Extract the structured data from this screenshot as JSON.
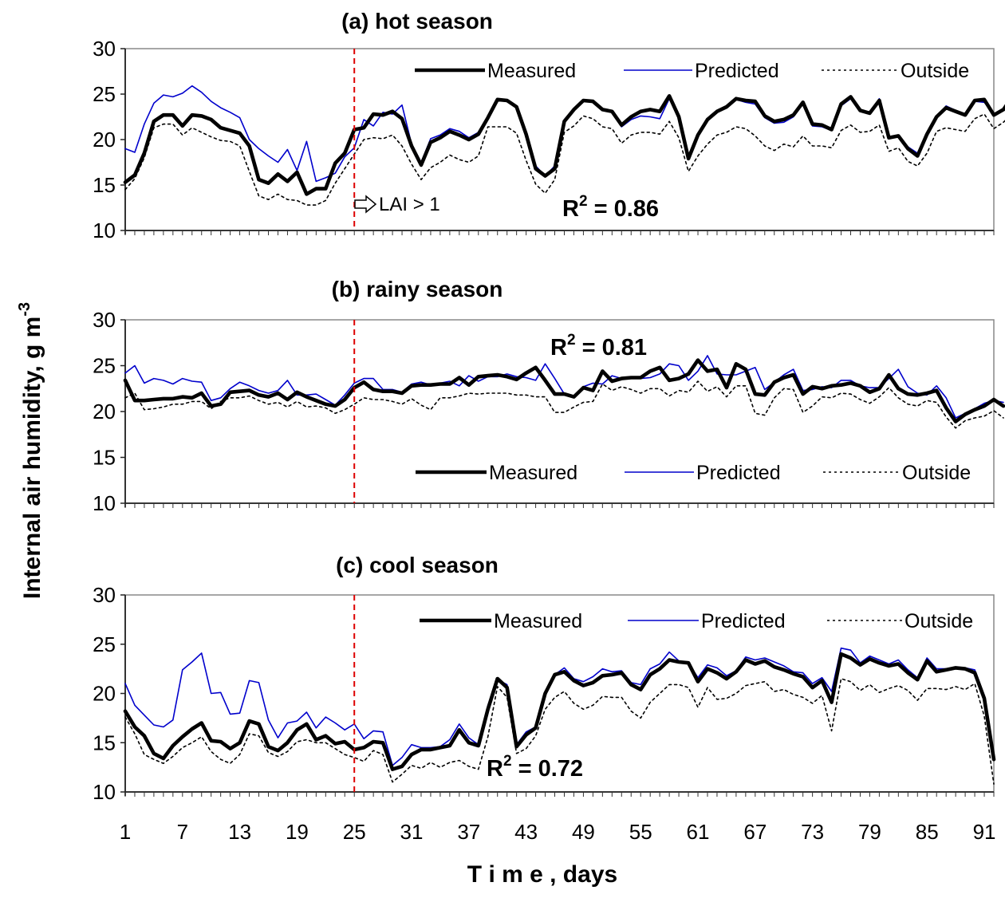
{
  "xlabel": "T i m e ,  days",
  "ylabel": "Internal air humidity, g m",
  "ylabel_sup": "-3",
  "x_tick_labels": [
    "1",
    "7",
    "13",
    "19",
    "25",
    "31",
    "37",
    "43",
    "49",
    "55",
    "61",
    "67",
    "73",
    "79",
    "85",
    "91"
  ],
  "colors": {
    "measured": "#000000",
    "predicted": "#0000cc",
    "outside": "#000000",
    "marker": "#dd0000"
  },
  "legend": {
    "measured": "Measured",
    "predicted": "Predicted",
    "outside": "Outside"
  },
  "chart_data": [
    {
      "type": "line",
      "title": "(a) hot season",
      "xlabel": "T i m e ,  days",
      "ylabel": "Internal air humidity, g m-3",
      "xlim": [
        1,
        92
      ],
      "ylim": [
        10,
        30
      ],
      "y_ticks": [
        10,
        15,
        20,
        25,
        30
      ],
      "r2_label": "R",
      "r2_value": " = 0.86",
      "annotation": "LAI > 1",
      "marker_day": 25,
      "legend_position": "top-right",
      "series": [
        {
          "name": "Measured",
          "values": [
            15.3,
            16.1,
            18.5,
            22,
            22.7,
            22.7,
            21.5,
            22.7,
            22.6,
            22.2,
            21.3,
            21,
            20.7,
            19.3,
            15.6,
            15.2,
            16.2,
            15.4,
            16.4,
            14,
            14.6,
            14.6,
            17.4,
            18.5,
            21.1,
            21.3,
            22.8,
            22.7,
            23.1,
            22.3,
            19.3,
            17.2,
            19.7,
            20.2,
            20.9,
            20.5,
            20,
            20.6,
            22.4,
            24.4,
            24.3,
            23.6,
            20.6,
            16.8,
            16,
            16.8,
            22,
            23.3,
            24.3,
            24.2,
            23.3,
            23.1,
            21.6,
            22.5,
            23.1,
            23.3,
            23.1,
            24.8,
            22.5,
            17.9,
            20.5,
            22.2,
            23.1,
            23.6,
            24.5,
            24.3,
            24.2,
            22.6,
            22,
            22.2,
            22.7,
            24.1,
            21.7,
            21.6,
            21.1,
            23.9,
            24.7,
            23.2,
            22.9,
            24.3,
            20.2,
            20.4,
            19,
            18.2,
            20.6,
            22.5,
            23.5,
            23.1,
            22.7,
            24.3,
            24.4,
            22.7,
            23.3,
            24.8
          ]
        },
        {
          "name": "Predicted",
          "values": [
            19,
            18.6,
            21.7,
            24,
            24.9,
            24.7,
            25.1,
            25.9,
            25.2,
            24.2,
            23.5,
            23,
            22.4,
            20,
            19,
            18.2,
            17.5,
            18.9,
            16.6,
            19.8,
            15.4,
            15.8,
            16.3,
            18.1,
            19.1,
            22.2,
            21.5,
            23,
            22.8,
            23.8,
            19.5,
            17.5,
            20.1,
            20.5,
            21.2,
            20.9,
            20.2,
            20.8,
            22.6,
            24.5,
            24.3,
            23.6,
            20.8,
            17.1,
            16,
            17.1,
            22.2,
            23.4,
            24.3,
            24.1,
            23.4,
            23,
            21.4,
            22.2,
            22.6,
            22.5,
            22.3,
            24.5,
            22.6,
            18.1,
            20.7,
            22.1,
            23,
            23.7,
            24.4,
            24.1,
            23.9,
            22.4,
            21.8,
            21.9,
            22.5,
            23.9,
            21.5,
            21.4,
            21,
            23.7,
            24.5,
            23.1,
            22.8,
            24.5,
            20.3,
            20.3,
            19.2,
            18.5,
            20.6,
            22.5,
            23.7,
            23.2,
            22.8,
            24.2,
            24.1,
            22.8,
            23.4,
            24.8
          ]
        },
        {
          "name": "Outside",
          "values": [
            14.5,
            15.7,
            18,
            21.3,
            21.7,
            21.7,
            20.5,
            21.3,
            20.8,
            20.3,
            19.9,
            19.8,
            19.3,
            16.5,
            13.8,
            13.4,
            14,
            13.4,
            13.3,
            12.8,
            12.8,
            13.3,
            15.2,
            16.8,
            18.4,
            20,
            20.2,
            20.1,
            20.5,
            19.3,
            17.3,
            15.6,
            16.9,
            17.5,
            18.3,
            17.8,
            17.5,
            18.2,
            21.4,
            21.4,
            21.4,
            20.7,
            17.7,
            15.1,
            14.1,
            15.6,
            20.8,
            21.5,
            22.6,
            22.3,
            21.4,
            21.2,
            19.6,
            20.5,
            20.8,
            20.8,
            20.6,
            22,
            20.2,
            16.5,
            18.2,
            19.5,
            20.5,
            20.8,
            21.4,
            21.2,
            20.4,
            19.3,
            18.8,
            19.5,
            19.2,
            20.4,
            19.3,
            19.3,
            19.1,
            21,
            21.6,
            20.8,
            20.9,
            21.6,
            18.7,
            19.1,
            17.6,
            17.1,
            18.5,
            20.9,
            21.3,
            21.1,
            20.9,
            22.3,
            22.8,
            21.2,
            21.9,
            22.9
          ]
        }
      ]
    },
    {
      "type": "line",
      "title": "(b) rainy season",
      "xlabel": "T i m e ,  days",
      "ylabel": "Internal air humidity, g m-3",
      "xlim": [
        1,
        92
      ],
      "ylim": [
        10,
        30
      ],
      "y_ticks": [
        10,
        15,
        20,
        25,
        30
      ],
      "r2_label": "R",
      "r2_value": " = 0.81",
      "marker_day": 25,
      "legend_position": "bottom-right",
      "series": [
        {
          "name": "Measured",
          "values": [
            23.4,
            21.2,
            21.2,
            21.3,
            21.4,
            21.4,
            21.6,
            21.5,
            22,
            20.6,
            20.8,
            22.1,
            22.2,
            22.3,
            21.8,
            21.6,
            22,
            21.3,
            22.1,
            21.6,
            21.2,
            20.8,
            20.6,
            21.3,
            22.6,
            23.2,
            22.4,
            22.2,
            22.2,
            22,
            22.8,
            22.9,
            22.9,
            23,
            23,
            23.7,
            22.9,
            23.8,
            23.9,
            24,
            23.8,
            23.5,
            24.2,
            24.8,
            23.4,
            21.9,
            21.9,
            21.6,
            22.6,
            22.3,
            24.4,
            23.3,
            23.6,
            23.7,
            23.7,
            24.4,
            24.8,
            23.4,
            23.6,
            24.1,
            25.6,
            24.4,
            24.6,
            22.6,
            25.2,
            24.6,
            21.9,
            21.8,
            23.2,
            23.7,
            24,
            21.9,
            22.7,
            22.5,
            22.8,
            22.9,
            23.1,
            22.8,
            22.1,
            22.5,
            24,
            22.5,
            21.9,
            21.8,
            22,
            22.3,
            20.4,
            18.9,
            19.7,
            20.2,
            20.6,
            21.3,
            20.6
          ]
        },
        {
          "name": "Predicted",
          "values": [
            24.2,
            25,
            23.1,
            23.6,
            23.4,
            23,
            23.6,
            23.3,
            23.2,
            21.2,
            21.5,
            22.5,
            23.2,
            22.8,
            22.3,
            22,
            22.3,
            23.4,
            21.8,
            21.8,
            21.9,
            21.3,
            20.7,
            21.8,
            23.1,
            23.6,
            23.6,
            22.4,
            22.4,
            22.1,
            23,
            23.2,
            22.9,
            23.1,
            23.3,
            22.8,
            23.9,
            23.3,
            23.8,
            23.8,
            24.1,
            23.8,
            23.7,
            23.4,
            25.2,
            23.6,
            21.9,
            21.6,
            22.7,
            23.1,
            23,
            23.9,
            23.6,
            23.8,
            23.6,
            23.7,
            24.1,
            25.2,
            25,
            23.4,
            24.4,
            26.1,
            24.1,
            24,
            24,
            24.4,
            24.8,
            22.4,
            23.2,
            24,
            24.6,
            22.3,
            22.4,
            22.7,
            22.6,
            23.4,
            23.4,
            22.8,
            22.6,
            22.6,
            23.6,
            24.6,
            22.7,
            22,
            21.8,
            22.8,
            21.5,
            19.3,
            19.8,
            20.3,
            20.9,
            21.2,
            21
          ]
        },
        {
          "name": "Outside",
          "values": [
            21.5,
            22,
            20.2,
            20.3,
            20.5,
            20.8,
            20.8,
            21.1,
            21.1,
            20.3,
            21.1,
            21.5,
            21.5,
            21.7,
            21.2,
            20.8,
            21,
            20.5,
            21.1,
            20.5,
            20.6,
            20.4,
            19.8,
            20.2,
            20.8,
            21.5,
            21.3,
            21.3,
            21.1,
            20.8,
            21.4,
            20.7,
            20.2,
            21.5,
            21.5,
            21.7,
            22,
            21.9,
            22,
            22,
            22,
            21.8,
            21.8,
            21.6,
            21.6,
            19.9,
            19.9,
            20.5,
            21,
            21.1,
            23,
            22.3,
            22.7,
            22.4,
            22,
            22.5,
            22.5,
            21.7,
            22.3,
            22.1,
            23.3,
            22.2,
            22.7,
            21.6,
            22.8,
            22.8,
            19.8,
            19.6,
            21.5,
            22.5,
            22.4,
            19.9,
            20.6,
            21.6,
            21.5,
            22,
            21.9,
            21.3,
            20.9,
            21.6,
            22.6,
            21.5,
            20.8,
            20.6,
            21.2,
            21,
            19.4,
            18.2,
            19,
            19.3,
            19.5,
            20.1,
            19.3
          ]
        }
      ]
    },
    {
      "type": "line",
      "title": "(c) cool season",
      "xlabel": "T i m e ,  days",
      "ylabel": "Internal air humidity, g m-3",
      "xlim": [
        1,
        92
      ],
      "ylim": [
        10,
        30
      ],
      "y_ticks": [
        10,
        15,
        20,
        25,
        30
      ],
      "r2_label": "R",
      "r2_value": " = 0.72",
      "marker_day": 25,
      "legend_position": "top-right",
      "series": [
        {
          "name": "Measured",
          "values": [
            18.2,
            16.6,
            15.7,
            13.9,
            13.4,
            14.7,
            15.6,
            16.4,
            17,
            15.2,
            15.1,
            14.4,
            15,
            17.2,
            16.9,
            14.6,
            14.2,
            15,
            16.3,
            16.9,
            15.3,
            15.7,
            14.9,
            15.1,
            14.3,
            14.5,
            15.1,
            15,
            12.3,
            12.6,
            13.8,
            14.3,
            14.3,
            14.5,
            14.7,
            16.3,
            15,
            14.7,
            18.4,
            21.5,
            20.6,
            14.6,
            15.8,
            16.5,
            20,
            21.9,
            22.2,
            21.3,
            20.8,
            21.1,
            21.8,
            21.9,
            22.1,
            20.9,
            20.4,
            21.9,
            22.5,
            23.4,
            23.2,
            23.1,
            21.2,
            22.5,
            22.1,
            21.5,
            22.2,
            23.4,
            23,
            23.3,
            22.7,
            22.4,
            22,
            21.7,
            20.6,
            21.3,
            19.1,
            24,
            23.6,
            22.9,
            23.5,
            23.1,
            22.8,
            23,
            22.1,
            21.4,
            23.3,
            22.2,
            22.4,
            22.6,
            22.5,
            22.1,
            19.5,
            13.3
          ]
        },
        {
          "name": "Predicted",
          "values": [
            21,
            18.8,
            17.8,
            16.8,
            16.6,
            17.3,
            22.4,
            23.2,
            24.1,
            20,
            20.1,
            17.9,
            18,
            21.3,
            21.1,
            17.3,
            15.5,
            17,
            17.2,
            18.1,
            16.5,
            17.6,
            17,
            16.3,
            16.9,
            15.4,
            16.2,
            16.1,
            12.7,
            13.5,
            14.8,
            14.5,
            14.5,
            14.6,
            15.3,
            16.9,
            15.5,
            14.8,
            18.8,
            21.4,
            20.9,
            14.8,
            16.1,
            16.6,
            20.2,
            21.9,
            22.6,
            21.5,
            21.2,
            21.7,
            22.5,
            22.2,
            22.3,
            21.1,
            20.9,
            22.5,
            23,
            24.2,
            23.3,
            23.1,
            21.6,
            22.9,
            22.6,
            21.8,
            22.3,
            23.7,
            23.4,
            23.6,
            23.2,
            22.8,
            22.2,
            22.1,
            21,
            21.6,
            20.2,
            24.6,
            24.4,
            23.1,
            23.8,
            23.4,
            23,
            23.4,
            22.4,
            21.6,
            23.6,
            22.5,
            22.5,
            22.7,
            22.6,
            22.4,
            19.8,
            13.8
          ]
        },
        {
          "name": "Outside",
          "values": [
            17.6,
            15.9,
            13.8,
            13.3,
            12.9,
            13.6,
            14.5,
            15,
            15.6,
            14.1,
            13.3,
            12.9,
            13.8,
            15.9,
            15.7,
            14,
            13.6,
            14.1,
            15.1,
            15.3,
            15,
            15,
            14.4,
            13.8,
            13.5,
            13.1,
            14.2,
            13.8,
            11,
            11.8,
            12.7,
            12.4,
            13,
            12.5,
            13,
            13.2,
            12.6,
            12.3,
            15.6,
            20.7,
            19.6,
            13.9,
            14.4,
            15.7,
            18.4,
            19.6,
            20.2,
            19,
            18.4,
            18.8,
            19.7,
            19.6,
            19.6,
            18.2,
            17.5,
            19.1,
            20,
            20.9,
            20.9,
            20.6,
            18.6,
            20.6,
            19.4,
            19.5,
            20,
            20.8,
            21,
            21.2,
            20.2,
            20.4,
            19.9,
            19.6,
            19,
            19.8,
            16.2,
            21.5,
            21.2,
            20.3,
            20.9,
            20.1,
            20.5,
            20.8,
            20.3,
            19.3,
            20.5,
            20.5,
            20.4,
            20.7,
            20.4,
            21,
            17.7,
            10.8
          ]
        }
      ]
    }
  ]
}
